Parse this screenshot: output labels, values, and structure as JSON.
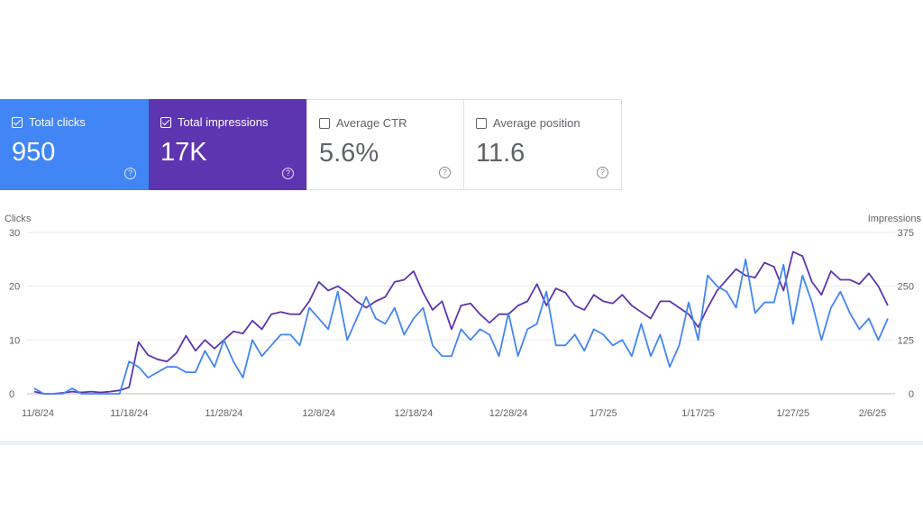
{
  "cards": [
    {
      "label": "Total clicks",
      "value": "950",
      "checked": true
    },
    {
      "label": "Total impressions",
      "value": "17K",
      "checked": true
    },
    {
      "label": "Average CTR",
      "value": "5.6%",
      "checked": false
    },
    {
      "label": "Average position",
      "value": "11.6",
      "checked": false
    }
  ],
  "help_glyph": "?",
  "colors": {
    "clicks": "#4285f4",
    "impressions": "#5e35b1",
    "grid": "#e8eaed"
  },
  "chart_data": {
    "type": "line",
    "title": "",
    "y_left": {
      "label": "Clicks",
      "ticks": [
        "30",
        "20",
        "10",
        "0"
      ],
      "range": [
        0,
        30
      ]
    },
    "y_right": {
      "label": "Impressions",
      "ticks": [
        "375",
        "250",
        "125",
        "0"
      ],
      "range": [
        0,
        375
      ]
    },
    "x_range": [
      0,
      90
    ],
    "x_ticks": [
      {
        "label": "11/8/24",
        "day": 0
      },
      {
        "label": "11/18/24",
        "day": 10
      },
      {
        "label": "11/28/24",
        "day": 20
      },
      {
        "label": "12/8/24",
        "day": 30
      },
      {
        "label": "12/18/24",
        "day": 40
      },
      {
        "label": "12/28/24",
        "day": 50
      },
      {
        "label": "1/7/25",
        "day": 60
      },
      {
        "label": "1/17/25",
        "day": 70
      },
      {
        "label": "1/27/25",
        "day": 80
      },
      {
        "label": "2/6/25",
        "day": 90
      }
    ],
    "series": [
      {
        "name": "Clicks",
        "axis": "left",
        "values": [
          1,
          0,
          0,
          0,
          1,
          0,
          0,
          0,
          0,
          0,
          6,
          5,
          3,
          4,
          5,
          5,
          4,
          4,
          8,
          5,
          10,
          6,
          3,
          10,
          7,
          9,
          11,
          11,
          9,
          16,
          14,
          12,
          19,
          10,
          14,
          18,
          14,
          13,
          16,
          11,
          14,
          16,
          9,
          7,
          7,
          12,
          10,
          12,
          11,
          7,
          15,
          7,
          12,
          13,
          19,
          9,
          9,
          11,
          8,
          12,
          11,
          9,
          10,
          7,
          13,
          7,
          11,
          5,
          9,
          17,
          10,
          22,
          20,
          19,
          16,
          25,
          15,
          17,
          17,
          24,
          13,
          22,
          17,
          10,
          16,
          19,
          15,
          12,
          14,
          10,
          14
        ]
      },
      {
        "name": "Impressions",
        "axis": "right",
        "values": [
          5,
          0,
          0,
          2,
          5,
          3,
          5,
          3,
          5,
          8,
          15,
          120,
          90,
          80,
          75,
          95,
          135,
          100,
          125,
          105,
          125,
          145,
          140,
          170,
          150,
          185,
          190,
          185,
          185,
          215,
          260,
          240,
          250,
          235,
          215,
          200,
          215,
          225,
          260,
          265,
          285,
          235,
          195,
          215,
          150,
          205,
          210,
          185,
          165,
          185,
          185,
          205,
          215,
          255,
          205,
          245,
          235,
          205,
          195,
          230,
          215,
          210,
          230,
          205,
          190,
          175,
          215,
          215,
          200,
          185,
          155,
          200,
          240,
          265,
          290,
          275,
          270,
          305,
          295,
          240,
          330,
          320,
          260,
          230,
          285,
          265,
          265,
          255,
          280,
          250,
          205
        ]
      }
    ]
  }
}
